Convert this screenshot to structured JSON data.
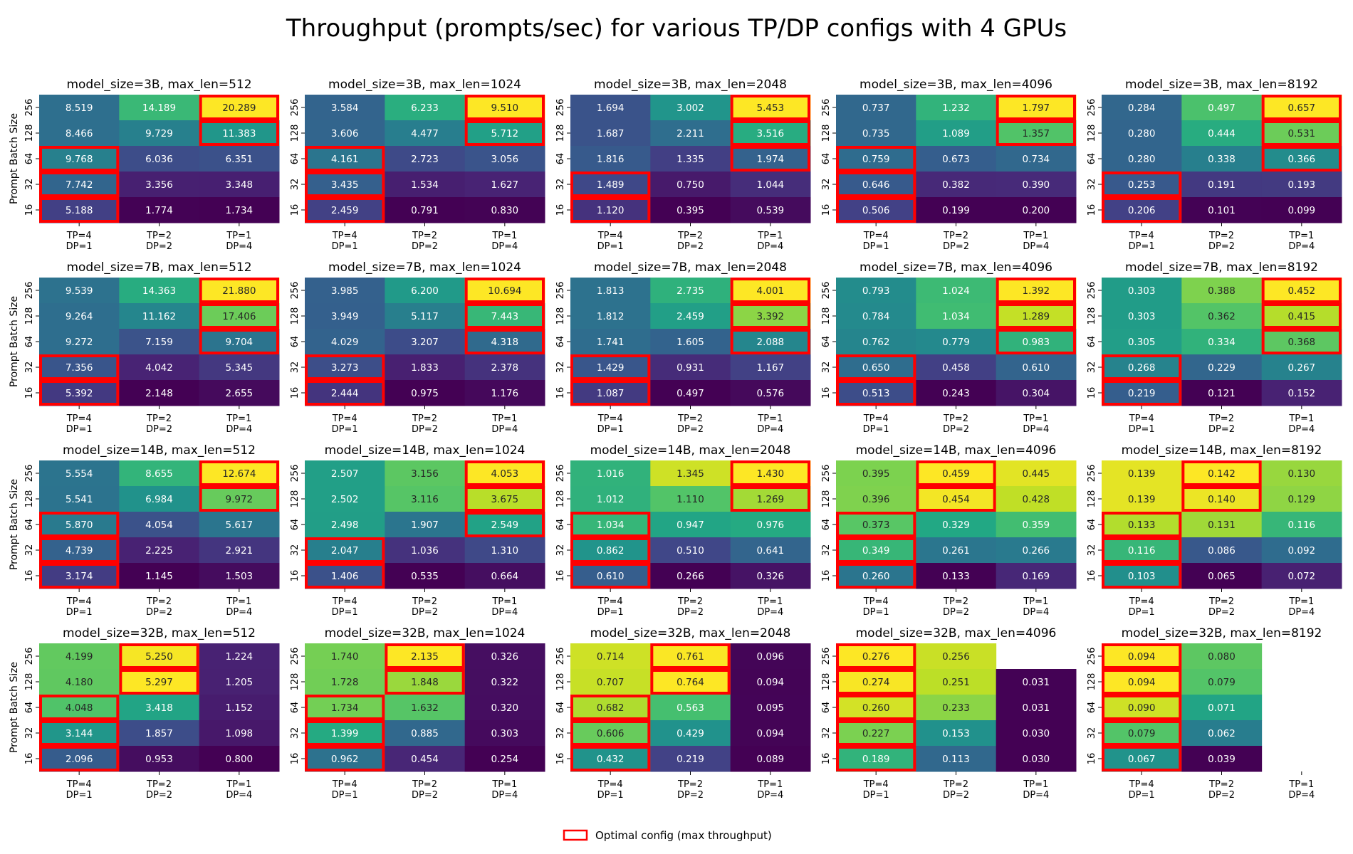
{
  "chart_data": {
    "type": "heatmap",
    "title": "Throughput (prompts/sec) for various TP/DP configs with 4 GPUs",
    "ylabel": "Prompt Batch Size",
    "y_ticks": [
      "256",
      "128",
      "64",
      "32",
      "16"
    ],
    "x_ticks": [
      [
        "TP=4",
        "DP=1"
      ],
      [
        "TP=2",
        "DP=2"
      ],
      [
        "TP=1",
        "DP=4"
      ]
    ],
    "colormap": "viridis",
    "color_scale": "per-panel min to max",
    "highlight_color": "#ff0000",
    "highlight_rule": "max throughput per batch size row",
    "legend": {
      "label": "Optimal config (max throughput)",
      "position": "bottom-center"
    },
    "panels": [
      {
        "title": "model_size=3B, max_len=512",
        "values": [
          [
            8.519,
            14.189,
            20.289
          ],
          [
            8.466,
            9.729,
            11.383
          ],
          [
            9.768,
            6.036,
            6.351
          ],
          [
            7.742,
            3.356,
            3.348
          ],
          [
            5.188,
            1.774,
            1.734
          ]
        ]
      },
      {
        "title": "model_size=3B, max_len=1024",
        "values": [
          [
            3.584,
            6.233,
            9.51
          ],
          [
            3.606,
            4.477,
            5.712
          ],
          [
            4.161,
            2.723,
            3.056
          ],
          [
            3.435,
            1.534,
            1.627
          ],
          [
            2.459,
            0.791,
            0.83
          ]
        ]
      },
      {
        "title": "model_size=3B, max_len=2048",
        "values": [
          [
            1.694,
            3.002,
            5.453
          ],
          [
            1.687,
            2.211,
            3.516
          ],
          [
            1.816,
            1.335,
            1.974
          ],
          [
            1.489,
            0.75,
            1.044
          ],
          [
            1.12,
            0.395,
            0.539
          ]
        ]
      },
      {
        "title": "model_size=3B, max_len=4096",
        "values": [
          [
            0.737,
            1.232,
            1.797
          ],
          [
            0.735,
            1.089,
            1.357
          ],
          [
            0.759,
            0.673,
            0.734
          ],
          [
            0.646,
            0.382,
            0.39
          ],
          [
            0.506,
            0.199,
            0.2
          ]
        ]
      },
      {
        "title": "model_size=3B, max_len=8192",
        "values": [
          [
            0.284,
            0.497,
            0.657
          ],
          [
            0.28,
            0.444,
            0.531
          ],
          [
            0.28,
            0.338,
            0.366
          ],
          [
            0.253,
            0.191,
            0.193
          ],
          [
            0.206,
            0.101,
            0.099
          ]
        ]
      },
      {
        "title": "model_size=7B, max_len=512",
        "values": [
          [
            9.539,
            14.363,
            21.88
          ],
          [
            9.264,
            11.162,
            17.406
          ],
          [
            9.272,
            7.159,
            9.704
          ],
          [
            7.356,
            4.042,
            5.345
          ],
          [
            5.392,
            2.148,
            2.655
          ]
        ]
      },
      {
        "title": "model_size=7B, max_len=1024",
        "values": [
          [
            3.985,
            6.2,
            10.694
          ],
          [
            3.949,
            5.117,
            7.443
          ],
          [
            4.029,
            3.207,
            4.318
          ],
          [
            3.273,
            1.833,
            2.378
          ],
          [
            2.444,
            0.975,
            1.176
          ]
        ]
      },
      {
        "title": "model_size=7B, max_len=2048",
        "values": [
          [
            1.813,
            2.735,
            4.001
          ],
          [
            1.812,
            2.459,
            3.392
          ],
          [
            1.741,
            1.605,
            2.088
          ],
          [
            1.429,
            0.931,
            1.167
          ],
          [
            1.087,
            0.497,
            0.576
          ]
        ]
      },
      {
        "title": "model_size=7B, max_len=4096",
        "values": [
          [
            0.793,
            1.024,
            1.392
          ],
          [
            0.784,
            1.034,
            1.289
          ],
          [
            0.762,
            0.779,
            0.983
          ],
          [
            0.65,
            0.458,
            0.61
          ],
          [
            0.513,
            0.243,
            0.304
          ]
        ]
      },
      {
        "title": "model_size=7B, max_len=8192",
        "values": [
          [
            0.303,
            0.388,
            0.452
          ],
          [
            0.303,
            0.362,
            0.415
          ],
          [
            0.305,
            0.334,
            0.368
          ],
          [
            0.268,
            0.229,
            0.267
          ],
          [
            0.219,
            0.121,
            0.152
          ]
        ]
      },
      {
        "title": "model_size=14B, max_len=512",
        "values": [
          [
            5.554,
            8.655,
            12.674
          ],
          [
            5.541,
            6.984,
            9.972
          ],
          [
            5.87,
            4.054,
            5.617
          ],
          [
            4.739,
            2.225,
            2.921
          ],
          [
            3.174,
            1.145,
            1.503
          ]
        ]
      },
      {
        "title": "model_size=14B, max_len=1024",
        "values": [
          [
            2.507,
            3.156,
            4.053
          ],
          [
            2.502,
            3.116,
            3.675
          ],
          [
            2.498,
            1.907,
            2.549
          ],
          [
            2.047,
            1.036,
            1.31
          ],
          [
            1.406,
            0.535,
            0.664
          ]
        ]
      },
      {
        "title": "model_size=14B, max_len=2048",
        "values": [
          [
            1.016,
            1.345,
            1.43
          ],
          [
            1.012,
            1.11,
            1.269
          ],
          [
            1.034,
            0.947,
            0.976
          ],
          [
            0.862,
            0.51,
            0.641
          ],
          [
            0.61,
            0.266,
            0.326
          ]
        ]
      },
      {
        "title": "model_size=14B, max_len=4096",
        "values": [
          [
            0.395,
            0.459,
            0.445
          ],
          [
            0.396,
            0.454,
            0.428
          ],
          [
            0.373,
            0.329,
            0.359
          ],
          [
            0.349,
            0.261,
            0.266
          ],
          [
            0.26,
            0.133,
            0.169
          ]
        ]
      },
      {
        "title": "model_size=14B, max_len=8192",
        "values": [
          [
            0.139,
            0.142,
            0.13
          ],
          [
            0.139,
            0.14,
            0.129
          ],
          [
            0.133,
            0.131,
            0.116
          ],
          [
            0.116,
            0.086,
            0.092
          ],
          [
            0.103,
            0.065,
            0.072
          ]
        ]
      },
      {
        "title": "model_size=32B, max_len=512",
        "values": [
          [
            4.199,
            5.25,
            1.224
          ],
          [
            4.18,
            5.297,
            1.205
          ],
          [
            4.048,
            3.418,
            1.152
          ],
          [
            3.144,
            1.857,
            1.098
          ],
          [
            2.096,
            0.953,
            0.8
          ]
        ]
      },
      {
        "title": "model_size=32B, max_len=1024",
        "values": [
          [
            1.74,
            2.135,
            0.326
          ],
          [
            1.728,
            1.848,
            0.322
          ],
          [
            1.734,
            1.632,
            0.32
          ],
          [
            1.399,
            0.885,
            0.303
          ],
          [
            0.962,
            0.454,
            0.254
          ]
        ]
      },
      {
        "title": "model_size=32B, max_len=2048",
        "values": [
          [
            0.714,
            0.761,
            0.096
          ],
          [
            0.707,
            0.764,
            0.094
          ],
          [
            0.682,
            0.563,
            0.095
          ],
          [
            0.606,
            0.429,
            0.094
          ],
          [
            0.432,
            0.219,
            0.089
          ]
        ]
      },
      {
        "title": "model_size=32B, max_len=4096",
        "values": [
          [
            0.276,
            0.256,
            null
          ],
          [
            0.274,
            0.251,
            0.031
          ],
          [
            0.26,
            0.233,
            0.031
          ],
          [
            0.227,
            0.153,
            0.03
          ],
          [
            0.189,
            0.113,
            0.03
          ]
        ]
      },
      {
        "title": "model_size=32B, max_len=8192",
        "values": [
          [
            0.094,
            0.08,
            null
          ],
          [
            0.094,
            0.079,
            null
          ],
          [
            0.09,
            0.071,
            null
          ],
          [
            0.079,
            0.062,
            null
          ],
          [
            0.067,
            0.039,
            null
          ]
        ]
      }
    ]
  }
}
